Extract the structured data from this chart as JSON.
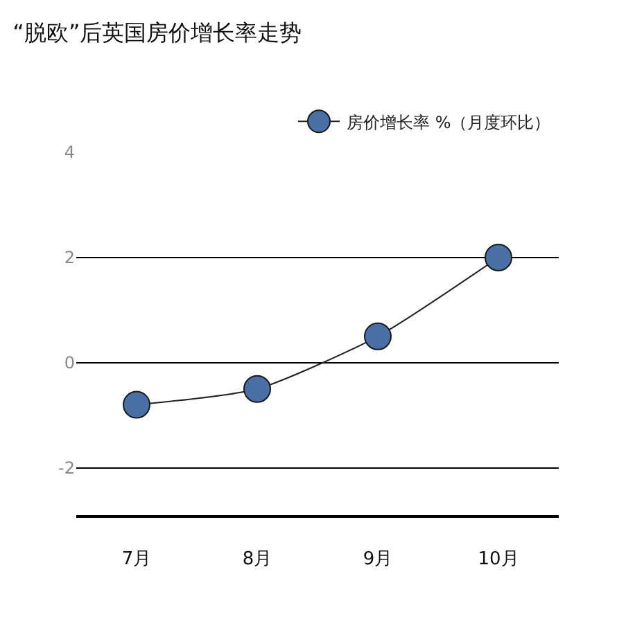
{
  "chart_data": {
    "type": "line",
    "title": "“脱欧”后英国房价增长率走势",
    "categories": [
      "7月",
      "8月",
      "9月",
      "10月"
    ],
    "series": [
      {
        "name": "房价增长率 %（月度环比）",
        "color": "#4a6fa5",
        "values": [
          -0.8,
          -0.5,
          0.5,
          2.0
        ]
      }
    ],
    "ylim": [
      -2.9,
      4
    ],
    "yticks": [
      -2,
      0,
      2,
      4
    ],
    "grid": "y",
    "legend": "top right",
    "marker": "circle",
    "line_style": "solid"
  }
}
